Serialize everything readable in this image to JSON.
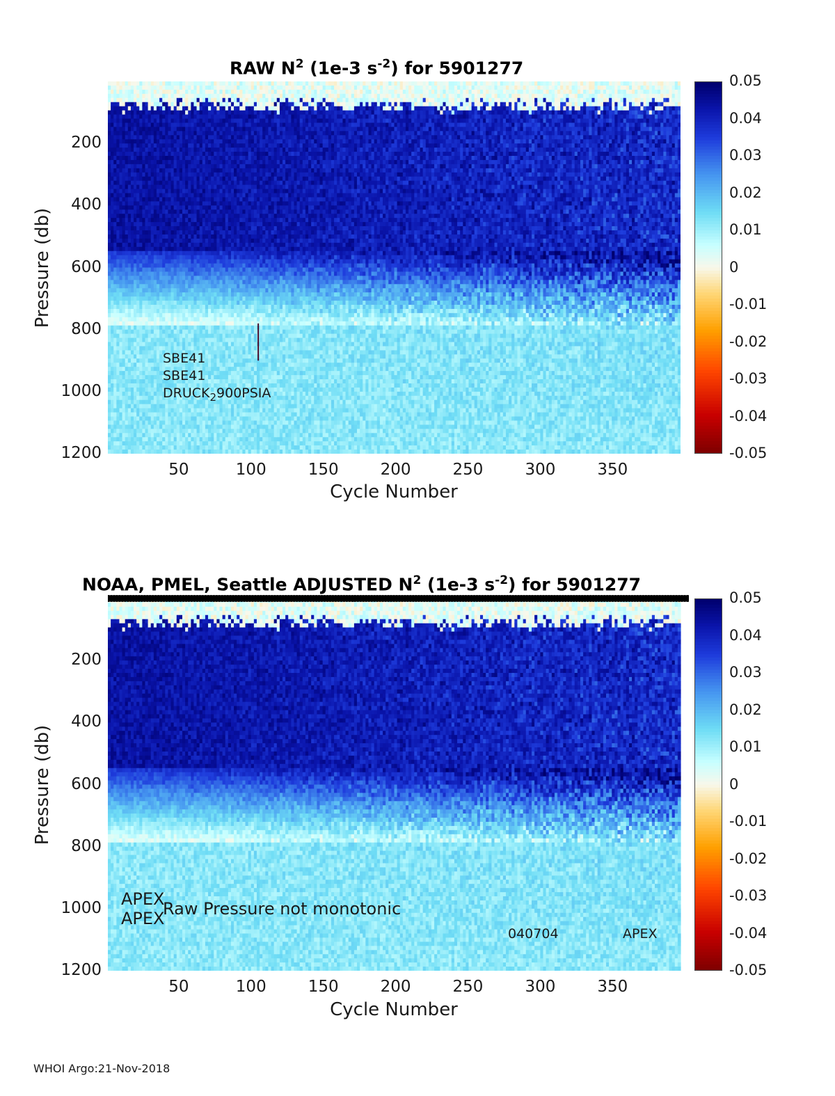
{
  "footer": "WHOI Argo:21-Nov-2018",
  "chart_data": [
    {
      "type": "heatmap",
      "title_main": "RAW N",
      "title_exp": "2",
      "title_mid": " (1e-3 s",
      "title_exp2": "-2",
      "title_end": ") for 5901277",
      "xlabel": "Cycle Number",
      "ylabel": "Pressure (db)",
      "xlim": [
        1,
        397
      ],
      "ylim": [
        0,
        1200
      ],
      "y_reversed": true,
      "xticks": [
        "50",
        "100",
        "150",
        "200",
        "250",
        "300",
        "350"
      ],
      "yticks": [
        "200",
        "400",
        "600",
        "800",
        "1000",
        "1200"
      ],
      "colorbar": {
        "range": [
          -0.05,
          0.05
        ],
        "ticks": [
          "0.05",
          "0.04",
          "0.03",
          "0.02",
          "0.01",
          "0",
          "-0.01",
          "-0.02",
          "-0.03",
          "-0.04",
          "-0.05"
        ],
        "colormap": "jet-like diverging"
      },
      "annotations": [
        "SBE41",
        "SBE41",
        "DRUCK",
        "2",
        "900PSIA"
      ],
      "marker": {
        "x_cycle": 105,
        "pressure": [
          780,
          900
        ]
      }
    },
    {
      "type": "heatmap",
      "title_prefix": "NOAA, PMEL, Seattle  ADJUSTED N",
      "title_exp": "2",
      "title_mid": " (1e-3 s",
      "title_exp2": "-2",
      "title_end": ") for 5901277",
      "xlabel": "Cycle Number",
      "ylabel": "Pressure (db)",
      "xlim": [
        1,
        397
      ],
      "ylim": [
        0,
        1200
      ],
      "y_reversed": true,
      "xticks": [
        "50",
        "100",
        "150",
        "200",
        "250",
        "300",
        "350"
      ],
      "yticks": [
        "200",
        "400",
        "600",
        "800",
        "1000",
        "1200"
      ],
      "colorbar": {
        "range": [
          -0.05,
          0.05
        ],
        "ticks": [
          "0.05",
          "0.04",
          "0.03",
          "0.02",
          "0.01",
          "0",
          "-0.01",
          "-0.02",
          "-0.03",
          "-0.04",
          "-0.05"
        ],
        "colormap": "jet-like diverging"
      },
      "annotations": [
        "APEX",
        "APEX",
        "Raw Pressure not monotonic",
        "040704",
        "APEX"
      ]
    }
  ]
}
